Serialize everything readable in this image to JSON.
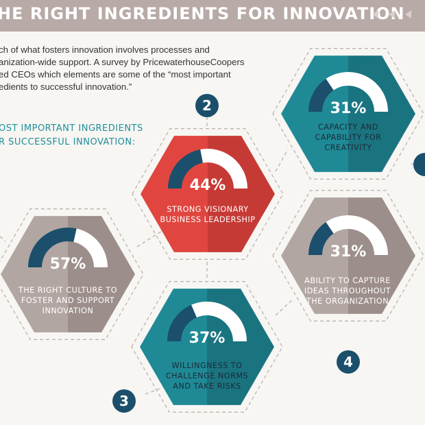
{
  "header": {
    "title": "HE RIGHT INGREDIENTS FOR INNOVATION"
  },
  "intro": {
    "lines": [
      "ch of what fosters innovation involves processes and",
      "anization-wide support. A survey by PricewaterhouseCoopers",
      "ed CEOs which elements are some of the “most important",
      "edients to successful innovation.”"
    ]
  },
  "subheading": {
    "lines": [
      "OST IMPORTANT INGREDIENTS",
      "R SUCCESSFUL INNOVATION:"
    ]
  },
  "colors": {
    "red": "#e0463f",
    "red_dark": "#c63a35",
    "teal": "#1f8a96",
    "teal_dark": "#1a7480",
    "taupe": "#b2a6a2",
    "taupe_dark": "#9c8e8a",
    "navy": "#1b4f6c",
    "white": "#ffffff"
  },
  "ingredients": [
    {
      "number": "2",
      "percent": "44%",
      "value": 0.44,
      "color": "red",
      "lines": [
        "STRONG VISIONARY",
        "BUSINESS LEADERSHIP"
      ]
    },
    {
      "number": "",
      "percent": "31%",
      "value": 0.31,
      "color": "teal",
      "lines": [
        "CAPACITY AND",
        "CAPABILITY FOR",
        "CREATIVITY"
      ]
    },
    {
      "number": "",
      "percent": "57%",
      "value": 0.57,
      "color": "taupe",
      "lines": [
        "THE RIGHT CULTURE TO",
        "FOSTER AND SUPPORT",
        "INNOVATION"
      ]
    },
    {
      "number": "4",
      "percent": "31%",
      "value": 0.31,
      "color": "taupe",
      "lines": [
        "ABILITY TO CAPTURE",
        "IDEAS THROUGHOUT",
        "THE ORGANIZATION"
      ]
    },
    {
      "number": "3",
      "percent": "37%",
      "value": 0.37,
      "color": "teal",
      "lines": [
        "WILLINGNESS TO",
        "CHALLENGE NORMS",
        "AND TAKE RISKS"
      ]
    }
  ]
}
